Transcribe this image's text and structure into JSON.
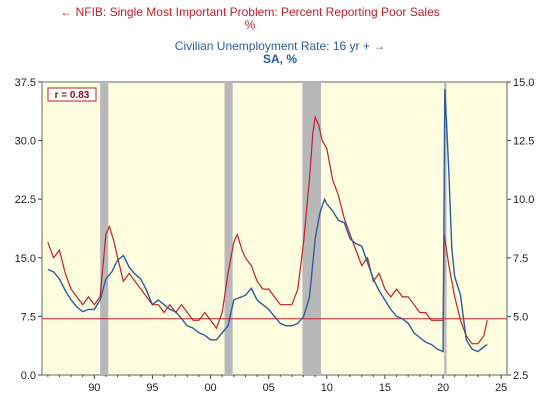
{
  "chart_data": {
    "type": "line",
    "series": [
      {
        "name": "NFIB: Single Most Important Problem: Percent Reporting Poor Sales",
        "unit": "%",
        "axis": "left",
        "color": "#c0202a",
        "x": [
          1986.0,
          1986.5,
          1987.0,
          1987.5,
          1988.0,
          1988.5,
          1989.0,
          1989.5,
          1990.0,
          1990.5,
          1991.0,
          1991.3,
          1991.7,
          1992.0,
          1992.5,
          1993.0,
          1993.5,
          1994.0,
          1994.5,
          1995.0,
          1995.5,
          1996.0,
          1996.5,
          1997.0,
          1997.5,
          1998.0,
          1998.5,
          1999.0,
          1999.5,
          2000.0,
          2000.5,
          2001.0,
          2001.5,
          2002.0,
          2002.3,
          2002.7,
          2003.0,
          2003.5,
          2004.0,
          2004.5,
          2005.0,
          2005.5,
          2006.0,
          2006.5,
          2007.0,
          2007.5,
          2008.0,
          2008.5,
          2008.8,
          2009.0,
          2009.3,
          2009.6,
          2010.0,
          2010.5,
          2011.0,
          2011.5,
          2012.0,
          2012.5,
          2013.0,
          2013.5,
          2014.0,
          2014.5,
          2015.0,
          2015.5,
          2016.0,
          2016.5,
          2017.0,
          2017.5,
          2018.0,
          2018.5,
          2019.0,
          2019.5,
          2020.0,
          2020.1,
          2020.3,
          2020.5,
          2021.0,
          2021.5,
          2022.0,
          2022.5,
          2023.0,
          2023.5,
          2023.8
        ],
        "values": [
          17,
          15,
          16,
          13,
          11,
          10,
          9,
          10,
          9,
          10,
          18,
          19,
          17,
          15,
          12,
          13,
          12,
          11,
          10,
          9,
          9,
          8,
          9,
          8,
          9,
          8,
          7,
          7,
          8,
          7,
          6,
          8,
          13,
          17,
          18,
          16,
          15,
          14,
          12,
          11,
          11,
          10,
          9,
          9,
          9,
          11,
          17,
          25,
          31,
          33,
          32,
          30,
          29,
          25,
          23,
          20,
          18,
          16,
          14,
          15,
          12,
          13,
          11,
          10,
          11,
          10,
          10,
          9,
          8,
          8,
          7,
          7,
          7,
          18,
          16,
          14,
          10,
          7,
          5,
          4,
          4,
          5,
          7
        ]
      },
      {
        "name": "Civilian Unemployment Rate: 16 yr +",
        "unit": "SA, %",
        "axis": "right",
        "color": "#2a5d9f",
        "x": [
          1986.0,
          1986.5,
          1987.0,
          1987.5,
          1988.0,
          1988.5,
          1989.0,
          1989.5,
          1990.0,
          1990.5,
          1991.0,
          1991.5,
          1992.0,
          1992.5,
          1993.0,
          1993.5,
          1994.0,
          1994.5,
          1995.0,
          1995.5,
          1996.0,
          1996.5,
          1997.0,
          1997.5,
          1998.0,
          1998.5,
          1999.0,
          1999.5,
          2000.0,
          2000.5,
          2001.0,
          2001.5,
          2002.0,
          2002.5,
          2003.0,
          2003.5,
          2004.0,
          2004.5,
          2005.0,
          2005.5,
          2006.0,
          2006.5,
          2007.0,
          2007.5,
          2008.0,
          2008.5,
          2009.0,
          2009.4,
          2009.8,
          2010.0,
          2010.5,
          2011.0,
          2011.5,
          2012.0,
          2012.5,
          2013.0,
          2013.5,
          2014.0,
          2014.5,
          2015.0,
          2015.5,
          2016.0,
          2016.5,
          2017.0,
          2017.5,
          2018.0,
          2018.5,
          2019.0,
          2019.5,
          2020.0,
          2020.15,
          2020.3,
          2020.5,
          2020.75,
          2021.0,
          2021.5,
          2022.0,
          2022.5,
          2023.0,
          2023.5,
          2023.8
        ],
        "values": [
          7.0,
          6.9,
          6.6,
          6.1,
          5.7,
          5.4,
          5.2,
          5.3,
          5.3,
          5.7,
          6.6,
          6.9,
          7.4,
          7.6,
          7.1,
          6.8,
          6.6,
          6.1,
          5.5,
          5.7,
          5.5,
          5.3,
          5.2,
          4.9,
          4.6,
          4.5,
          4.3,
          4.2,
          4.0,
          4.0,
          4.3,
          4.6,
          5.7,
          5.8,
          5.9,
          6.2,
          5.7,
          5.5,
          5.3,
          5.0,
          4.7,
          4.6,
          4.6,
          4.7,
          5.0,
          5.8,
          8.3,
          9.4,
          10.0,
          9.8,
          9.5,
          9.1,
          9.0,
          8.3,
          8.1,
          8.0,
          7.3,
          6.6,
          6.1,
          5.7,
          5.3,
          5.0,
          4.9,
          4.7,
          4.3,
          4.1,
          3.9,
          3.8,
          3.6,
          3.5,
          14.7,
          13.3,
          11.1,
          7.9,
          6.7,
          5.9,
          4.0,
          3.6,
          3.5,
          3.7,
          3.8
        ]
      }
    ],
    "recessions": [
      [
        1990.5,
        1991.2
      ],
      [
        2001.2,
        2001.9
      ],
      [
        2007.9,
        2009.5
      ],
      [
        2020.1,
        2020.3
      ]
    ],
    "y_left": {
      "ylim": [
        0,
        37.5
      ],
      "ticks": [
        "0.0",
        "7.5",
        "15.0",
        "22.5",
        "30.0",
        "37.5"
      ],
      "tick_values": [
        0,
        7.5,
        15,
        22.5,
        30,
        37.5
      ]
    },
    "y_right": {
      "ylim": [
        2.5,
        15.0
      ],
      "ticks": [
        "2.5",
        "5.0",
        "7.5",
        "10.0",
        "12.5",
        "15.0"
      ],
      "tick_values": [
        2.5,
        5,
        7.5,
        10,
        12.5,
        15
      ]
    },
    "x_axis": {
      "xlim": [
        1985.5,
        2025.5
      ],
      "ticks": [
        "90",
        "95",
        "00",
        "05",
        "10",
        "15",
        "20",
        "25"
      ],
      "tick_values": [
        1990,
        1995,
        2000,
        2005,
        2010,
        2015,
        2020,
        2025
      ]
    },
    "reference_line": {
      "axis": "left",
      "value": 7.2,
      "color": "#c0202a"
    },
    "annotation": "r = 0.83",
    "grid": false,
    "legend_placement": "top"
  }
}
